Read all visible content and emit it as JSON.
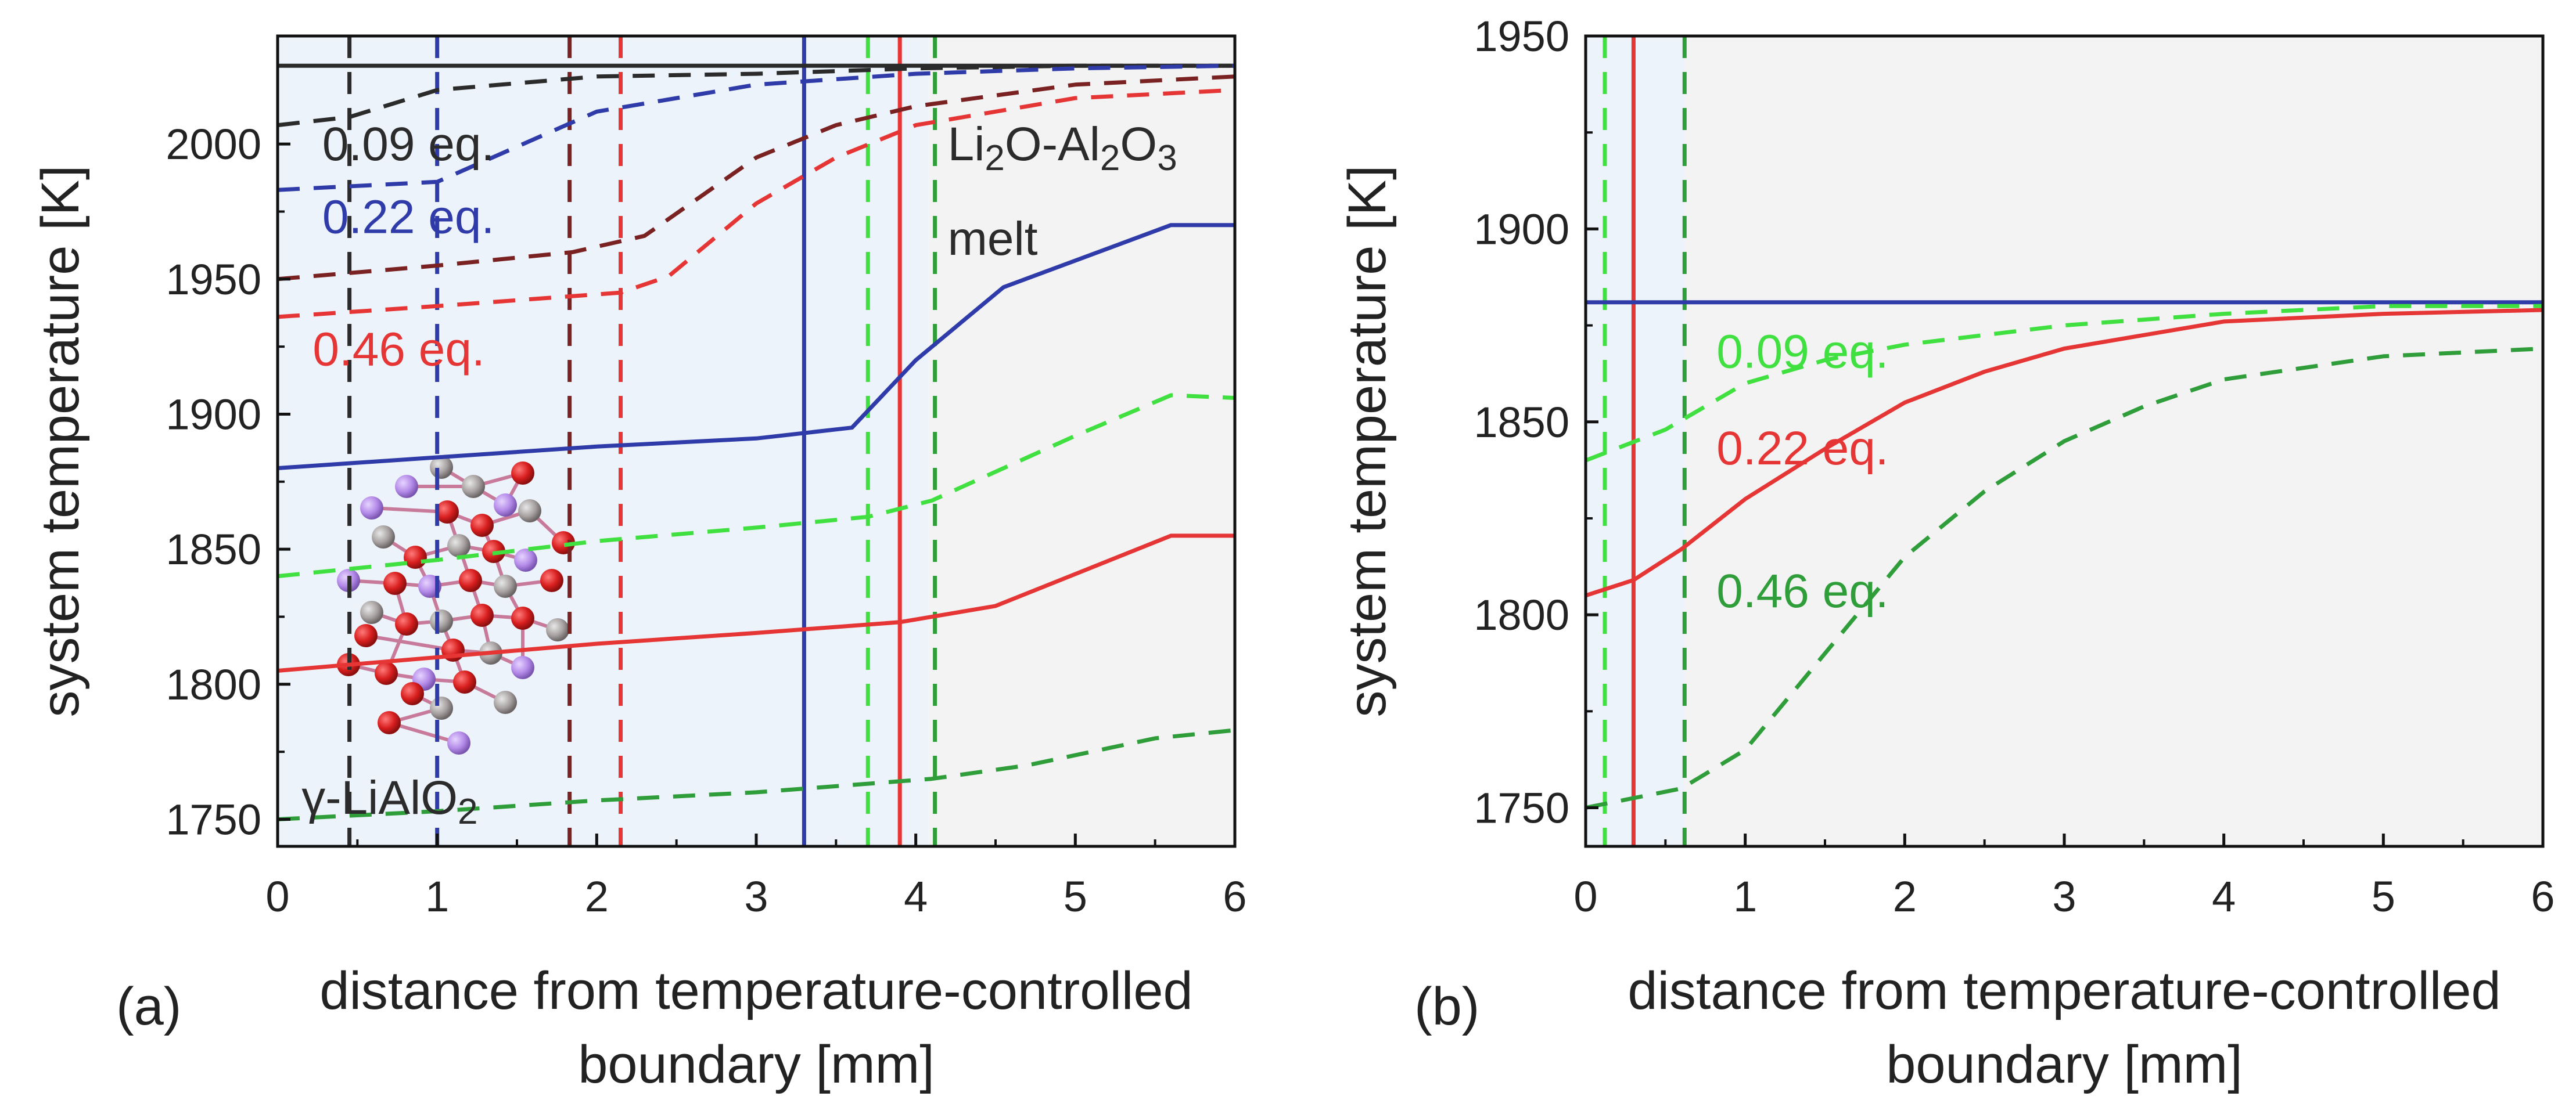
{
  "colors": {
    "black": "#2b2b2b",
    "blue": "#2e3ba8",
    "red": "#e53535",
    "darkred": "#7a2222",
    "lightgreen": "#3fe03f",
    "darkgreen": "#2f9e3a",
    "bg_light_blue": "#edf3fb",
    "bg_gray": "#f3f3f3"
  },
  "chart_data": [
    {
      "type": "line",
      "panel_label": "(a)",
      "xlabel_line1": "distance from temperature-controlled",
      "xlabel_line2": "boundary [mm]",
      "ylabel": "system temperature [K]",
      "xlim": [
        0,
        6
      ],
      "ylim": [
        1740,
        2040
      ],
      "xticks": [
        "0",
        "1",
        "2",
        "3",
        "4",
        "5",
        "6"
      ],
      "yticks": [
        "1750",
        "1800",
        "1850",
        "1900",
        "1950",
        "2000"
      ],
      "ytick_values": [
        1750,
        1800,
        1850,
        1900,
        1950,
        2000
      ],
      "background_regions": [
        {
          "x": [
            0,
            4.08
          ],
          "color": "bg_light_blue"
        },
        {
          "x": [
            4.08,
            6
          ],
          "color": "bg_gray"
        }
      ],
      "series": [
        {
          "color": "black",
          "style": "solid",
          "x": [
            0,
            6
          ],
          "y": [
            2029,
            2029
          ]
        },
        {
          "color": "black",
          "style": "dashed",
          "x": [
            0,
            0.45,
            1.0,
            2.0,
            3.0,
            3.5,
            4.0,
            5.0,
            6.0
          ],
          "y": [
            2007,
            2010,
            2020,
            2025,
            2026,
            2027,
            2028,
            2029,
            2029
          ]
        },
        {
          "color": "blue",
          "style": "dashed",
          "x": [
            0,
            1.0,
            2.0,
            3.0,
            4.0,
            5.0,
            6.0
          ],
          "y": [
            1983,
            1986,
            2012,
            2022,
            2026,
            2028,
            2029
          ]
        },
        {
          "color": "darkred",
          "style": "dashed",
          "x": [
            0,
            1.0,
            1.85,
            2.3,
            3.0,
            3.5,
            4.0,
            5.0,
            6.0
          ],
          "y": [
            1950,
            1955,
            1960,
            1966,
            1995,
            2007,
            2014,
            2022,
            2025
          ]
        },
        {
          "color": "red",
          "style": "dashed",
          "x": [
            0,
            1.0,
            2.15,
            2.45,
            3.0,
            3.5,
            4.0,
            5.0,
            6.0
          ],
          "y": [
            1936,
            1940,
            1945,
            1951,
            1978,
            1995,
            2007,
            2017,
            2020
          ]
        },
        {
          "color": "blue",
          "style": "solid",
          "x": [
            0,
            1.0,
            2.0,
            3.0,
            3.6,
            4.0,
            4.55,
            5.6,
            6.0
          ],
          "y": [
            1880,
            1884,
            1888,
            1891,
            1895,
            1920,
            1947,
            1970,
            1970
          ]
        },
        {
          "color": "lightgreen",
          "style": "dashed",
          "x": [
            0,
            1.0,
            2.0,
            3.0,
            3.7,
            4.1,
            5.0,
            5.6,
            6.0
          ],
          "y": [
            1840,
            1846,
            1853,
            1858,
            1862,
            1868,
            1892,
            1907,
            1906
          ]
        },
        {
          "color": "red",
          "style": "solid",
          "x": [
            0,
            1.0,
            2.0,
            3.0,
            3.9,
            4.5,
            5.6,
            6.0
          ],
          "y": [
            1805,
            1810,
            1815,
            1819,
            1823,
            1829,
            1855,
            1855
          ]
        },
        {
          "color": "darkgreen",
          "style": "dashed",
          "x": [
            0,
            1.0,
            2.0,
            3.0,
            4.1,
            4.7,
            5.5,
            6.0
          ],
          "y": [
            1750,
            1753,
            1757,
            1760,
            1765,
            1770,
            1780,
            1783
          ]
        }
      ],
      "vlines": [
        {
          "x": 0.45,
          "color": "black",
          "style": "dashed"
        },
        {
          "x": 1.0,
          "color": "blue",
          "style": "dashed"
        },
        {
          "x": 1.83,
          "color": "darkred",
          "style": "dashed"
        },
        {
          "x": 2.15,
          "color": "red",
          "style": "dashed"
        },
        {
          "x": 3.3,
          "color": "blue",
          "style": "solid"
        },
        {
          "x": 3.7,
          "color": "lightgreen",
          "style": "dashed"
        },
        {
          "x": 3.9,
          "color": "red",
          "style": "solid"
        },
        {
          "x": 4.12,
          "color": "darkgreen",
          "style": "dashed"
        }
      ],
      "annotations": [
        {
          "text": "0.09 eq.",
          "color": "black",
          "x": 0.28,
          "y": 1994
        },
        {
          "text": "0.22 eq.",
          "color": "blue",
          "x": 0.28,
          "y": 1967
        },
        {
          "text": "0.46 eq.",
          "color": "red",
          "x": 0.22,
          "y": 1918
        },
        {
          "text": "γ-LiAlO",
          "sub": "2",
          "color": "black",
          "x": 0.15,
          "y": 1752
        },
        {
          "text": "Li",
          "sub": "2",
          "text2": "O-Al",
          "sub2": "2",
          "text3": "O",
          "sub3": "3",
          "color": "black",
          "x": 4.2,
          "y": 1994
        },
        {
          "text": "melt",
          "color": "black",
          "x": 4.2,
          "y": 1959
        }
      ]
    },
    {
      "type": "line",
      "panel_label": "(b)",
      "xlabel_line1": "distance from temperature-controlled",
      "xlabel_line2": "boundary [mm]",
      "ylabel": "system temperature [K]",
      "xlim": [
        0,
        6
      ],
      "ylim": [
        1740,
        1950
      ],
      "xticks": [
        "0",
        "1",
        "2",
        "3",
        "4",
        "5",
        "6"
      ],
      "yticks": [
        "1750",
        "1800",
        "1850",
        "1900",
        "1950"
      ],
      "ytick_values": [
        1750,
        1800,
        1850,
        1900,
        1950
      ],
      "background_regions": [
        {
          "x": [
            0,
            0.62
          ],
          "color": "bg_light_blue"
        },
        {
          "x": [
            0.62,
            6
          ],
          "color": "bg_gray"
        }
      ],
      "series": [
        {
          "color": "blue",
          "style": "solid",
          "x": [
            0,
            6
          ],
          "y": [
            1881,
            1881
          ]
        },
        {
          "color": "lightgreen",
          "style": "dashed",
          "x": [
            0,
            0.5,
            1.0,
            1.5,
            2.0,
            3.0,
            4.0,
            5.0,
            6.0
          ],
          "y": [
            1840,
            1848,
            1860,
            1866,
            1870,
            1875,
            1878,
            1880,
            1880
          ]
        },
        {
          "color": "red",
          "style": "solid",
          "x": [
            0,
            0.3,
            0.6,
            1.0,
            1.5,
            2.0,
            2.5,
            3.0,
            4.0,
            5.0,
            6.0
          ],
          "y": [
            1805,
            1809,
            1817,
            1830,
            1843,
            1855,
            1863,
            1869,
            1876,
            1878,
            1879
          ]
        },
        {
          "color": "darkgreen",
          "style": "dashed",
          "x": [
            0,
            0.6,
            1.0,
            1.5,
            2.0,
            2.5,
            3.0,
            3.5,
            4.0,
            5.0,
            6.0
          ],
          "y": [
            1750,
            1755,
            1765,
            1790,
            1815,
            1832,
            1845,
            1854,
            1861,
            1867,
            1869
          ]
        }
      ],
      "vlines": [
        {
          "x": 0.12,
          "color": "lightgreen",
          "style": "dashed"
        },
        {
          "x": 0.3,
          "color": "red",
          "style": "solid"
        },
        {
          "x": 0.62,
          "color": "darkgreen",
          "style": "dashed"
        }
      ],
      "annotations": [
        {
          "text": "0.09 eq.",
          "color": "lightgreen",
          "x": 0.82,
          "y": 1864
        },
        {
          "text": "0.22 eq.",
          "color": "red",
          "x": 0.82,
          "y": 1839
        },
        {
          "text": "0.46 eq.",
          "color": "darkgreen",
          "x": 0.82,
          "y": 1802
        }
      ]
    }
  ]
}
